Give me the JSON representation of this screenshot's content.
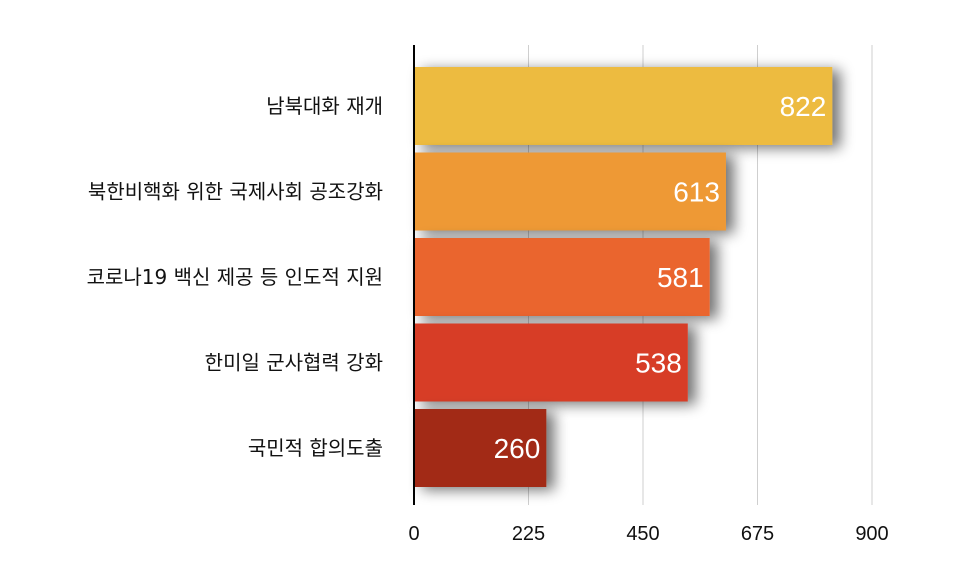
{
  "chart_data": {
    "type": "bar",
    "orientation": "horizontal",
    "categories": [
      "남북대화 재개",
      "북한비핵화 위한 국제사회 공조강화",
      "코로나19 백신 제공 등 인도적 지원",
      "한미일 군사협력 강화",
      "국민적 합의도출"
    ],
    "values": [
      822,
      613,
      581,
      538,
      260
    ],
    "value_labels": [
      "822",
      "613",
      "581",
      "538",
      "260"
    ],
    "xlim": [
      0,
      900
    ],
    "xticks": [
      0,
      225,
      450,
      675,
      900
    ],
    "xtick_labels": [
      "0",
      "225",
      "450",
      "675",
      "900"
    ],
    "grid": true,
    "legend": "none",
    "colors": [
      "#EDBB41",
      "#EE9936",
      "#EA652D",
      "#D73C26",
      "#A22A17"
    ]
  }
}
